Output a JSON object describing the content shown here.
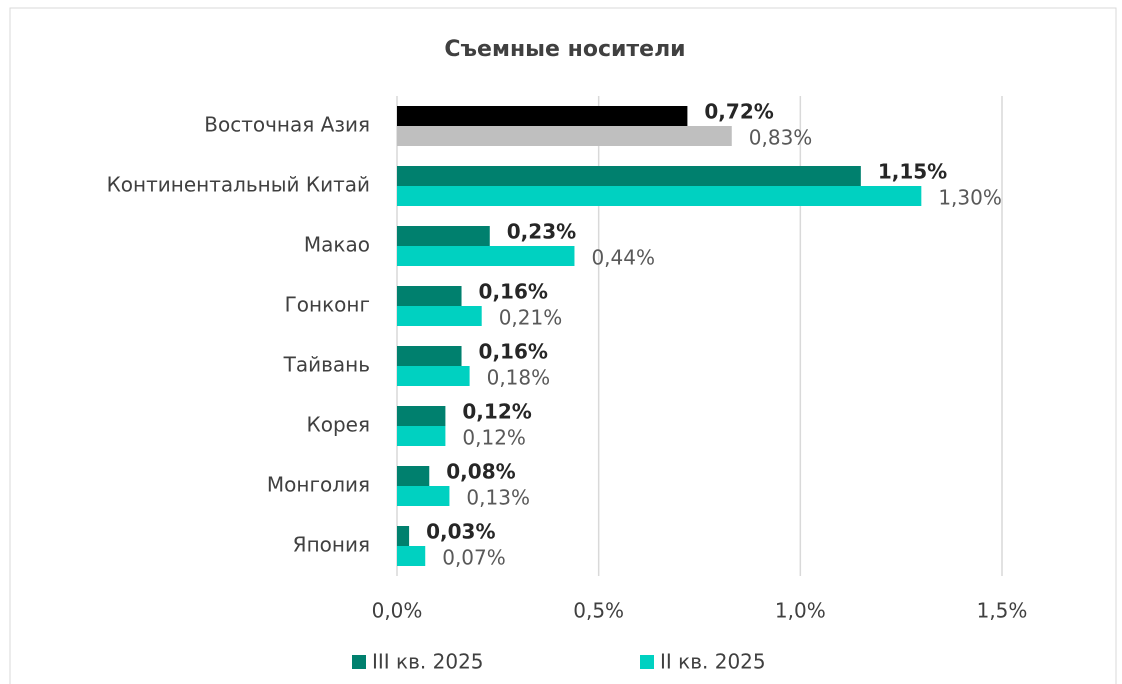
{
  "chart_data": {
    "type": "bar",
    "orientation": "horizontal",
    "title": "Съемные носители",
    "categories": [
      "Восточная Азия",
      "Континентальный Китай",
      "Макао",
      "Гонконг",
      "Тайвань",
      "Корея",
      "Монголия",
      "Япония"
    ],
    "series": [
      {
        "name": "III кв. 2025",
        "color": "#00806e",
        "colors": [
          "#000000",
          "#00806e",
          "#00806e",
          "#00806e",
          "#00806e",
          "#00806e",
          "#00806e",
          "#00806e"
        ],
        "values": [
          0.72,
          1.15,
          0.23,
          0.16,
          0.16,
          0.12,
          0.08,
          0.03
        ],
        "value_labels": [
          "0,72%",
          "1,15%",
          "0,23%",
          "0,16%",
          "0,16%",
          "0,12%",
          "0,08%",
          "0,03%"
        ]
      },
      {
        "name": "II кв. 2025",
        "color": "#00d1c1",
        "colors": [
          "#bfbfbf",
          "#00d1c1",
          "#00d1c1",
          "#00d1c1",
          "#00d1c1",
          "#00d1c1",
          "#00d1c1",
          "#00d1c1"
        ],
        "values": [
          0.83,
          1.3,
          0.44,
          0.21,
          0.18,
          0.12,
          0.13,
          0.07
        ],
        "value_labels": [
          "0,83%",
          "1,30%",
          "0,44%",
          "0,21%",
          "0,18%",
          "0,12%",
          "0,13%",
          "0,07%"
        ]
      }
    ],
    "xlim": [
      0,
      1.5
    ],
    "xticks": [
      {
        "value": 0,
        "label": "0,0%"
      },
      {
        "value": 0.5,
        "label": "0,5%"
      },
      {
        "value": 1.0,
        "label": "1,0%"
      },
      {
        "value": 1.5,
        "label": "1,5%"
      }
    ],
    "grid": true,
    "legend": "bottom"
  }
}
